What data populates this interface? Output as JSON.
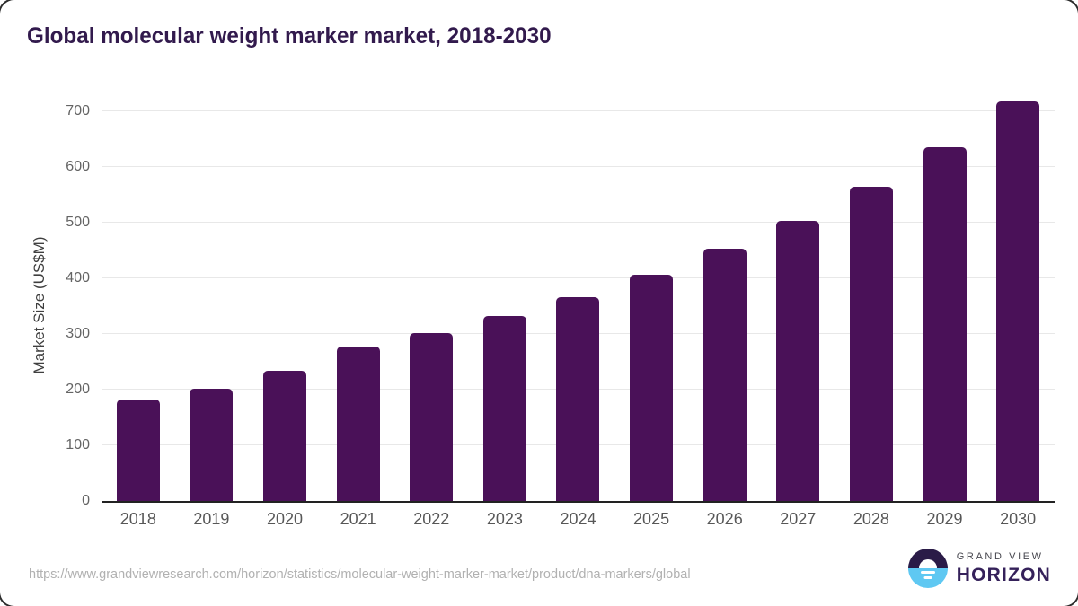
{
  "title": "Global molecular weight marker market, 2018-2030",
  "chart_data": {
    "type": "bar",
    "title": "Global molecular weight marker market, 2018-2030",
    "categories": [
      "2018",
      "2019",
      "2020",
      "2021",
      "2022",
      "2023",
      "2024",
      "2025",
      "2026",
      "2027",
      "2028",
      "2029",
      "2030"
    ],
    "values": [
      182,
      202,
      234,
      277,
      302,
      332,
      366,
      406,
      452,
      503,
      564,
      634,
      717
    ],
    "xlabel": "",
    "ylabel": "Market Size (US$M)",
    "ylim": [
      0,
      700
    ],
    "yticks": [
      0,
      100,
      200,
      300,
      400,
      500,
      600,
      700
    ],
    "grid": true,
    "legend": false,
    "bar_color": "#4a1158"
  },
  "footer": {
    "source_url": "https://www.grandviewresearch.com/horizon/statistics/molecular-weight-marker-market/product/dna-markers/global",
    "logo": {
      "top_text": "GRAND VIEW",
      "bottom_text": "HORIZON"
    }
  },
  "colors": {
    "bar": "#4a1158",
    "title": "#321a4d",
    "tick_label": "#5e5e5e",
    "gridline": "#e8e8e8",
    "baseline": "#222222",
    "source_url": "#b1b1b1",
    "logo_dark_half": "#2a1b47",
    "logo_blue_half": "#5fc8f2",
    "logo_wordmark": "#35215a"
  }
}
